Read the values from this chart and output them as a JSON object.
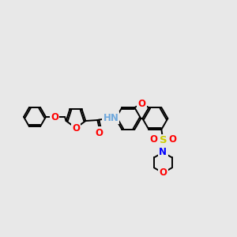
{
  "background_color": "#e8e8e8",
  "bond_color": "#000000",
  "atom_colors": {
    "O": "#ff0000",
    "N": "#0000ff",
    "S": "#cccc00",
    "H": "#6fa8dc",
    "C": "#000000"
  },
  "line_width": 1.4,
  "font_size": 8.5,
  "figsize": [
    3.0,
    3.0
  ],
  "dpi": 100
}
